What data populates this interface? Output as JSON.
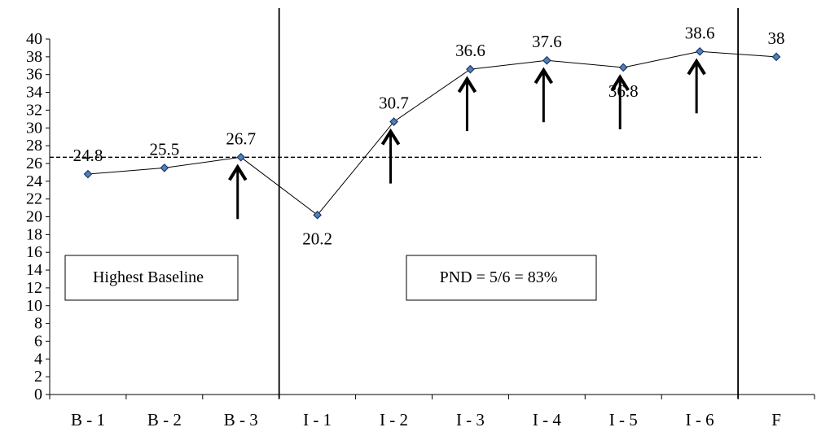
{
  "chart_data": {
    "type": "line",
    "categories": [
      "B - 1",
      "B - 2",
      "B - 3",
      "I - 1",
      "I - 2",
      "I - 3",
      "I - 4",
      "I - 5",
      "I - 6",
      "F"
    ],
    "values": [
      24.8,
      25.5,
      26.7,
      20.2,
      30.7,
      36.6,
      37.6,
      36.8,
      38.6,
      38
    ],
    "data_labels": [
      "24.8",
      "25.5",
      "26.7",
      "20.2",
      "30.7",
      "36.6",
      "37.6",
      "36.8",
      "38.6",
      "38"
    ],
    "ylim": [
      0,
      40
    ],
    "y_ticks": [
      "0",
      "2",
      "4",
      "6",
      "8",
      "10",
      "12",
      "14",
      "16",
      "18",
      "20",
      "22",
      "24",
      "26",
      "28",
      "30",
      "32",
      "34",
      "36",
      "38",
      "40"
    ],
    "title": "",
    "xlabel": "",
    "ylabel": "",
    "grid": false,
    "legend": "none",
    "reference_line": {
      "value": 26.7,
      "style": "dashed"
    },
    "phase_dividers_after": [
      "B - 3",
      "I - 6"
    ],
    "arrows_at": [
      "B - 3",
      "I - 2",
      "I - 3",
      "I - 4",
      "I - 5",
      "I - 6"
    ],
    "annotations": {
      "baseline_box": "Highest Baseline",
      "pnd_box": "PND = 5/6 = 83%"
    },
    "colors": {
      "line": "#000000",
      "marker": "#4F81BD",
      "marker_edge": "#1F3864"
    }
  }
}
